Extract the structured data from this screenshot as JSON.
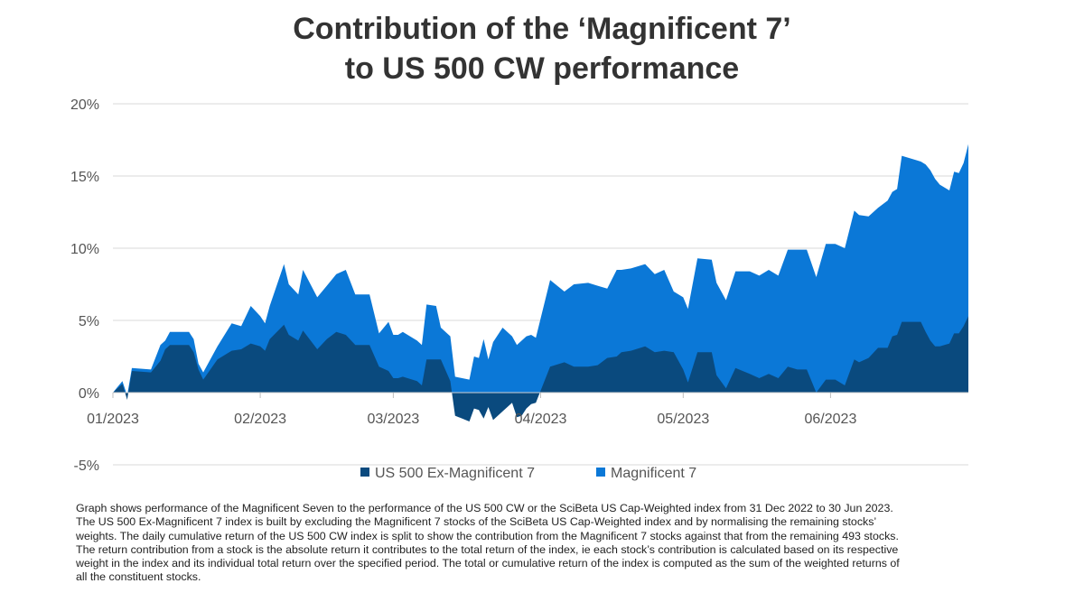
{
  "chart_data": {
    "type": "area",
    "title_lines": [
      "Contribution of the ‘Magnificent 7’",
      "to US 500 CW performance"
    ],
    "xlabel": "",
    "ylabel": "",
    "ylim": [
      -5,
      20
    ],
    "yticks": [
      "20%",
      "15%",
      "10%",
      "5%",
      "0%",
      "-5%"
    ],
    "xticks": [
      "01/2023",
      "02/2023",
      "03/2023",
      "04/2023",
      "05/2023",
      "06/2023"
    ],
    "legend_position": "bottom",
    "stacked": true,
    "series": [
      {
        "name": "US 500 Ex-Magnificent 7",
        "color": "#0a4a7e",
        "points": [
          [
            "2023-01-01",
            0
          ],
          [
            "2023-01-03",
            0.6
          ],
          [
            "2023-01-04",
            -0.5
          ],
          [
            "2023-01-05",
            1.5
          ],
          [
            "2023-01-09",
            1.4
          ],
          [
            "2023-01-11",
            2.2
          ],
          [
            "2023-01-12",
            3.0
          ],
          [
            "2023-01-13",
            3.3
          ],
          [
            "2023-01-17",
            3.3
          ],
          [
            "2023-01-18",
            2.8
          ],
          [
            "2023-01-19",
            1.6
          ],
          [
            "2023-01-20",
            0.9
          ],
          [
            "2023-01-23",
            2.3
          ],
          [
            "2023-01-26",
            2.9
          ],
          [
            "2023-01-28",
            3.0
          ],
          [
            "2023-01-30",
            3.4
          ],
          [
            "2023-02-01",
            3.2
          ],
          [
            "2023-02-02",
            2.9
          ],
          [
            "2023-02-03",
            3.7
          ],
          [
            "2023-02-06",
            4.7
          ],
          [
            "2023-02-07",
            4.0
          ],
          [
            "2023-02-09",
            3.6
          ],
          [
            "2023-02-10",
            4.3
          ],
          [
            "2023-02-13",
            3.0
          ],
          [
            "2023-02-15",
            3.7
          ],
          [
            "2023-02-17",
            4.2
          ],
          [
            "2023-02-19",
            4.0
          ],
          [
            "2023-02-21",
            3.3
          ],
          [
            "2023-02-24",
            3.3
          ],
          [
            "2023-02-26",
            1.8
          ],
          [
            "2023-02-28",
            1.5
          ],
          [
            "2023-03-01",
            1.0
          ],
          [
            "2023-03-02",
            1.0
          ],
          [
            "2023-03-03",
            1.1
          ],
          [
            "2023-03-06",
            0.8
          ],
          [
            "2023-03-07",
            0.5
          ],
          [
            "2023-03-08",
            2.3
          ],
          [
            "2023-03-10",
            2.3
          ],
          [
            "2023-03-11",
            2.3
          ],
          [
            "2023-03-13",
            0.8
          ],
          [
            "2023-03-14",
            -1.6
          ],
          [
            "2023-03-17",
            -2.0
          ],
          [
            "2023-03-18",
            -1.1
          ],
          [
            "2023-03-19",
            -1.2
          ],
          [
            "2023-03-20",
            -1.8
          ],
          [
            "2023-03-21",
            -1.0
          ],
          [
            "2023-03-22",
            -1.9
          ],
          [
            "2023-03-24",
            -1.3
          ],
          [
            "2023-03-26",
            -0.7
          ],
          [
            "2023-03-27",
            -1.7
          ],
          [
            "2023-03-28",
            -1.6
          ],
          [
            "2023-03-29",
            -1.1
          ],
          [
            "2023-03-30",
            -0.8
          ],
          [
            "2023-03-31",
            -0.7
          ],
          [
            "2023-04-03",
            1.8
          ],
          [
            "2023-04-06",
            2.1
          ],
          [
            "2023-04-08",
            1.8
          ],
          [
            "2023-04-11",
            1.8
          ],
          [
            "2023-04-13",
            1.9
          ],
          [
            "2023-04-15",
            2.4
          ],
          [
            "2023-04-17",
            2.5
          ],
          [
            "2023-04-18",
            2.8
          ],
          [
            "2023-04-20",
            2.9
          ],
          [
            "2023-04-23",
            3.2
          ],
          [
            "2023-04-25",
            2.8
          ],
          [
            "2023-04-27",
            2.9
          ],
          [
            "2023-04-29",
            2.8
          ],
          [
            "2023-05-01",
            1.6
          ],
          [
            "2023-05-02",
            0.7
          ],
          [
            "2023-05-04",
            2.8
          ],
          [
            "2023-05-07",
            2.8
          ],
          [
            "2023-05-08",
            1.2
          ],
          [
            "2023-05-10",
            0.3
          ],
          [
            "2023-05-12",
            1.7
          ],
          [
            "2023-05-15",
            1.3
          ],
          [
            "2023-05-17",
            1.0
          ],
          [
            "2023-05-19",
            1.3
          ],
          [
            "2023-05-21",
            1.0
          ],
          [
            "2023-05-23",
            1.8
          ],
          [
            "2023-05-25",
            1.6
          ],
          [
            "2023-05-27",
            1.6
          ],
          [
            "2023-05-29",
            0.0
          ],
          [
            "2023-05-31",
            0.9
          ],
          [
            "2023-06-02",
            0.9
          ],
          [
            "2023-06-04",
            0.5
          ],
          [
            "2023-06-06",
            2.3
          ],
          [
            "2023-06-07",
            2.1
          ],
          [
            "2023-06-09",
            2.4
          ],
          [
            "2023-06-11",
            3.1
          ],
          [
            "2023-06-13",
            3.1
          ],
          [
            "2023-06-14",
            3.9
          ],
          [
            "2023-06-15",
            4.0
          ],
          [
            "2023-06-16",
            4.9
          ],
          [
            "2023-06-20",
            4.9
          ],
          [
            "2023-06-21",
            4.2
          ],
          [
            "2023-06-22",
            3.6
          ],
          [
            "2023-06-23",
            3.2
          ],
          [
            "2023-06-24",
            3.2
          ],
          [
            "2023-06-26",
            3.4
          ],
          [
            "2023-06-27",
            4.1
          ],
          [
            "2023-06-28",
            4.1
          ],
          [
            "2023-06-29",
            4.6
          ],
          [
            "2023-06-30",
            5.3
          ]
        ]
      },
      {
        "name": "Magnificent 7",
        "color": "#0b78d7",
        "points": [
          [
            "2023-01-01",
            0
          ],
          [
            "2023-01-03",
            0.8
          ],
          [
            "2023-01-04",
            -0.2
          ],
          [
            "2023-01-05",
            1.7
          ],
          [
            "2023-01-09",
            1.6
          ],
          [
            "2023-01-11",
            3.3
          ],
          [
            "2023-01-12",
            3.6
          ],
          [
            "2023-01-13",
            4.2
          ],
          [
            "2023-01-17",
            4.2
          ],
          [
            "2023-01-18",
            3.7
          ],
          [
            "2023-01-19",
            2.0
          ],
          [
            "2023-01-20",
            1.4
          ],
          [
            "2023-01-23",
            3.2
          ],
          [
            "2023-01-26",
            4.8
          ],
          [
            "2023-01-28",
            4.6
          ],
          [
            "2023-01-30",
            6.0
          ],
          [
            "2023-02-01",
            5.3
          ],
          [
            "2023-02-02",
            4.8
          ],
          [
            "2023-02-03",
            6.0
          ],
          [
            "2023-02-06",
            8.9
          ],
          [
            "2023-02-07",
            7.5
          ],
          [
            "2023-02-09",
            6.8
          ],
          [
            "2023-02-10",
            8.5
          ],
          [
            "2023-02-13",
            6.6
          ],
          [
            "2023-02-15",
            7.4
          ],
          [
            "2023-02-17",
            8.2
          ],
          [
            "2023-02-19",
            8.5
          ],
          [
            "2023-02-21",
            6.8
          ],
          [
            "2023-02-24",
            6.8
          ],
          [
            "2023-02-26",
            4.1
          ],
          [
            "2023-02-28",
            4.9
          ],
          [
            "2023-03-01",
            4.0
          ],
          [
            "2023-03-02",
            4.0
          ],
          [
            "2023-03-03",
            4.2
          ],
          [
            "2023-03-06",
            3.6
          ],
          [
            "2023-03-07",
            3.3
          ],
          [
            "2023-03-08",
            6.1
          ],
          [
            "2023-03-10",
            6.0
          ],
          [
            "2023-03-11",
            4.5
          ],
          [
            "2023-03-13",
            3.9
          ],
          [
            "2023-03-14",
            1.1
          ],
          [
            "2023-03-17",
            0.9
          ],
          [
            "2023-03-18",
            2.5
          ],
          [
            "2023-03-19",
            2.4
          ],
          [
            "2023-03-20",
            3.7
          ],
          [
            "2023-03-21",
            2.3
          ],
          [
            "2023-03-22",
            3.5
          ],
          [
            "2023-03-24",
            4.5
          ],
          [
            "2023-03-26",
            3.9
          ],
          [
            "2023-03-27",
            3.3
          ],
          [
            "2023-03-28",
            3.6
          ],
          [
            "2023-03-29",
            3.9
          ],
          [
            "2023-03-30",
            4.0
          ],
          [
            "2023-03-31",
            3.8
          ],
          [
            "2023-04-03",
            7.8
          ],
          [
            "2023-04-06",
            7.0
          ],
          [
            "2023-04-08",
            7.5
          ],
          [
            "2023-04-11",
            7.6
          ],
          [
            "2023-04-13",
            7.4
          ],
          [
            "2023-04-15",
            7.2
          ],
          [
            "2023-04-17",
            8.5
          ],
          [
            "2023-04-18",
            8.5
          ],
          [
            "2023-04-20",
            8.6
          ],
          [
            "2023-04-23",
            8.9
          ],
          [
            "2023-04-25",
            8.2
          ],
          [
            "2023-04-27",
            8.5
          ],
          [
            "2023-04-29",
            7.0
          ],
          [
            "2023-05-01",
            6.6
          ],
          [
            "2023-05-02",
            5.8
          ],
          [
            "2023-05-04",
            9.3
          ],
          [
            "2023-05-07",
            9.2
          ],
          [
            "2023-05-08",
            7.6
          ],
          [
            "2023-05-10",
            6.4
          ],
          [
            "2023-05-12",
            8.4
          ],
          [
            "2023-05-15",
            8.4
          ],
          [
            "2023-05-17",
            8.1
          ],
          [
            "2023-05-19",
            8.5
          ],
          [
            "2023-05-21",
            8.1
          ],
          [
            "2023-05-23",
            9.9
          ],
          [
            "2023-05-25",
            9.9
          ],
          [
            "2023-05-27",
            9.9
          ],
          [
            "2023-05-29",
            8.0
          ],
          [
            "2023-05-31",
            10.3
          ],
          [
            "2023-06-02",
            10.3
          ],
          [
            "2023-06-04",
            10.0
          ],
          [
            "2023-06-06",
            12.6
          ],
          [
            "2023-06-07",
            12.3
          ],
          [
            "2023-06-09",
            12.2
          ],
          [
            "2023-06-11",
            12.8
          ],
          [
            "2023-06-13",
            13.3
          ],
          [
            "2023-06-14",
            13.9
          ],
          [
            "2023-06-15",
            14.1
          ],
          [
            "2023-06-16",
            16.4
          ],
          [
            "2023-06-20",
            16.0
          ],
          [
            "2023-06-21",
            15.8
          ],
          [
            "2023-06-22",
            15.4
          ],
          [
            "2023-06-23",
            14.8
          ],
          [
            "2023-06-24",
            14.4
          ],
          [
            "2023-06-26",
            14.0
          ],
          [
            "2023-06-27",
            15.3
          ],
          [
            "2023-06-28",
            15.2
          ],
          [
            "2023-06-29",
            15.9
          ],
          [
            "2023-06-30",
            17.2
          ]
        ]
      }
    ]
  },
  "caption_lines": [
    "Graph shows performance of the Magnificent Seven to the performance of the US 500 CW or the SciBeta US Cap-Weighted index from 31 Dec 2022 to 30 Jun 2023.",
    "The US 500 Ex-Magnificent 7 index is built by excluding the Magnificent 7 stocks of the SciBeta US Cap-Weighted index and by normalising the remaining stocks’",
    "weights. The daily cumulative return of the US 500 CW index is split to show the contribution from the Magnificent 7 stocks against that from the remaining 493 stocks.",
    "The return contribution from a stock is the absolute return it contributes to the total return of the index, ie each stock’s contribution is calculated based on its respective",
    "weight in the index and its individual total return over the specified period. The total or cumulative return of the index is computed as the sum of the weighted returns of",
    "all the constituent stocks."
  ]
}
